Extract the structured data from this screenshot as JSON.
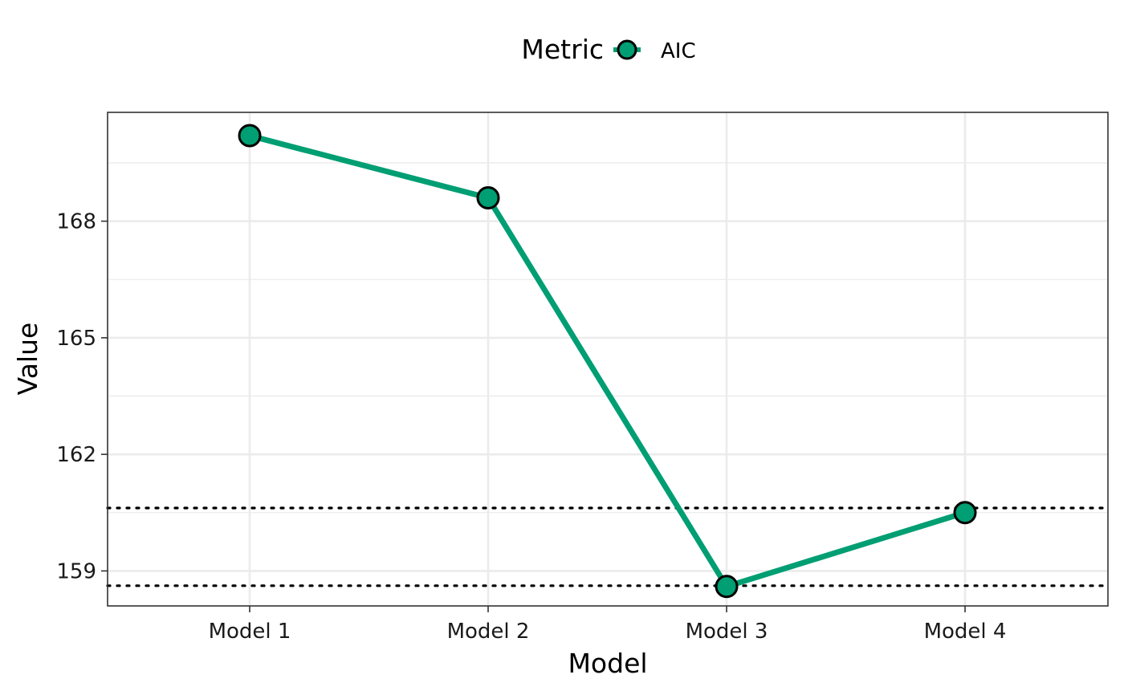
{
  "chart_data": {
    "type": "line",
    "title": "",
    "xlabel": "Model",
    "ylabel": "Value",
    "categories": [
      "Model 1",
      "Model 2",
      "Model 3",
      "Model 4"
    ],
    "series": [
      {
        "name": "AIC",
        "values": [
          170.2,
          168.6,
          158.6,
          160.5
        ],
        "color": "#009E73"
      }
    ],
    "y_ticks": [
      159,
      162,
      165,
      168
    ],
    "ylim": [
      158.1,
      170.8
    ],
    "reference_lines": [
      158.62,
      160.62
    ],
    "grid": true,
    "legend": {
      "title": "Metric",
      "position": "top"
    }
  }
}
